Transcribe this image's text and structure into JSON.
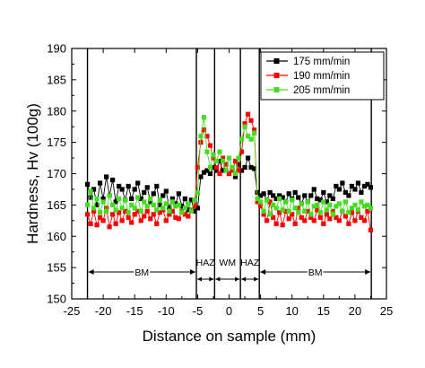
{
  "chart_data": {
    "type": "line",
    "title": "",
    "xlabel": "Distance on sample (mm)",
    "ylabel": "Hardness, Hv (100g)",
    "xlim": [
      -25,
      25
    ],
    "ylim": [
      150,
      190
    ],
    "x_ticks": [
      "-25",
      "-20",
      "-15",
      "-10",
      "-5",
      "0",
      "5",
      "10",
      "15",
      "20",
      "25"
    ],
    "x_tick_values": [
      -25,
      -20,
      -15,
      -10,
      -5,
      0,
      5,
      10,
      15,
      20,
      25
    ],
    "y_ticks": [
      "150",
      "155",
      "160",
      "165",
      "170",
      "175",
      "180",
      "185",
      "190"
    ],
    "y_tick_values": [
      150,
      155,
      160,
      165,
      170,
      175,
      180,
      185,
      190
    ],
    "grid": false,
    "legend_position": "top-right",
    "region_boundaries": [
      -22.5,
      -5.2,
      -2.3,
      1.8,
      4.8,
      22.6
    ],
    "region_annotation_y": 154.3,
    "regions": [
      {
        "label": "BM",
        "from": -22.5,
        "to": -5.2
      },
      {
        "label": "HAZ",
        "from": -5.2,
        "to": -2.3
      },
      {
        "label": "WM",
        "from": -2.3,
        "to": 1.8
      },
      {
        "label": "HAZ",
        "from": 1.8,
        "to": 4.8
      },
      {
        "label": "BM",
        "from": 4.8,
        "to": 22.6
      }
    ],
    "series": [
      {
        "name": "175 mm/min",
        "color": "#000000",
        "x": [
          -22.5,
          -22.0,
          -21.5,
          -21.0,
          -20.5,
          -20.0,
          -19.5,
          -19.0,
          -18.5,
          -18.0,
          -17.5,
          -17.0,
          -16.5,
          -16.0,
          -15.5,
          -15.0,
          -14.5,
          -14.0,
          -13.5,
          -13.0,
          -12.5,
          -12.0,
          -11.5,
          -11.0,
          -10.5,
          -10.0,
          -9.5,
          -9.0,
          -8.5,
          -8.0,
          -7.5,
          -7.0,
          -6.5,
          -6.0,
          -5.5,
          -5.0,
          -4.5,
          -4.0,
          -3.5,
          -3.0,
          -2.5,
          -2.0,
          -1.5,
          -1.0,
          -0.5,
          0.0,
          0.5,
          1.0,
          1.5,
          2.0,
          2.5,
          3.0,
          3.5,
          4.0,
          4.5,
          5.0,
          5.5,
          6.0,
          6.5,
          7.0,
          7.5,
          8.0,
          8.5,
          9.0,
          9.5,
          10.0,
          10.5,
          11.0,
          11.5,
          12.0,
          12.5,
          13.0,
          13.5,
          14.0,
          14.5,
          15.0,
          15.5,
          16.0,
          16.5,
          17.0,
          17.5,
          18.0,
          18.5,
          19.0,
          19.5,
          20.0,
          20.5,
          21.0,
          21.5,
          22.0,
          22.5
        ],
        "y": [
          168.3,
          166.2,
          167.5,
          165.0,
          168.5,
          166.0,
          169.5,
          166.5,
          169.0,
          165.5,
          168.0,
          167.5,
          165.8,
          168.0,
          166.0,
          167.5,
          168.5,
          166.0,
          167.0,
          167.8,
          165.5,
          166.8,
          168.0,
          165.0,
          166.5,
          167.2,
          164.5,
          166.0,
          165.2,
          166.8,
          164.8,
          166.0,
          164.2,
          165.8,
          164.0,
          164.5,
          169.5,
          170.2,
          170.5,
          170.0,
          171.0,
          170.5,
          172.0,
          170.5,
          171.5,
          170.0,
          171.0,
          169.5,
          171.5,
          170.5,
          171.0,
          172.5,
          171.0,
          170.8,
          167.0,
          166.5,
          166.8,
          165.8,
          167.0,
          166.5,
          166.0,
          166.5,
          166.2,
          165.5,
          166.8,
          166.0,
          167.0,
          166.2,
          165.2,
          166.5,
          165.5,
          166.5,
          167.5,
          166.0,
          165.8,
          167.0,
          165.5,
          166.5,
          166.0,
          168.0,
          167.5,
          168.5,
          167.0,
          166.5,
          168.0,
          167.5,
          168.5,
          167.0,
          168.0,
          168.3,
          167.8
        ]
      },
      {
        "name": "190 mm/min",
        "color": "#ff0000",
        "x": [
          -22.5,
          -22.0,
          -21.5,
          -21.0,
          -20.5,
          -20.0,
          -19.5,
          -19.0,
          -18.5,
          -18.0,
          -17.5,
          -17.0,
          -16.5,
          -16.0,
          -15.5,
          -15.0,
          -14.5,
          -14.0,
          -13.5,
          -13.0,
          -12.5,
          -12.0,
          -11.5,
          -11.0,
          -10.5,
          -10.0,
          -9.5,
          -9.0,
          -8.5,
          -8.0,
          -7.5,
          -7.0,
          -6.5,
          -6.0,
          -5.5,
          -5.0,
          -4.5,
          -4.0,
          -3.5,
          -3.0,
          -2.5,
          -2.0,
          -1.5,
          -1.0,
          -0.5,
          0.0,
          0.5,
          1.0,
          1.5,
          2.0,
          2.5,
          3.0,
          3.5,
          4.0,
          4.5,
          5.0,
          5.5,
          6.0,
          6.5,
          7.0,
          7.5,
          8.0,
          8.5,
          9.0,
          9.5,
          10.0,
          10.5,
          11.0,
          11.5,
          12.0,
          12.5,
          13.0,
          13.5,
          14.0,
          14.5,
          15.0,
          15.5,
          16.0,
          16.5,
          17.0,
          17.5,
          18.0,
          18.5,
          19.0,
          19.5,
          20.0,
          20.5,
          21.0,
          21.5,
          22.0,
          22.5
        ],
        "y": [
          163.5,
          162.0,
          164.0,
          161.8,
          163.0,
          162.5,
          164.5,
          161.5,
          163.5,
          162.0,
          163.8,
          162.5,
          164.0,
          163.0,
          162.2,
          163.5,
          164.0,
          162.5,
          163.2,
          164.0,
          162.8,
          163.5,
          162.0,
          163.8,
          164.2,
          162.5,
          163.5,
          164.0,
          163.0,
          162.8,
          164.0,
          163.5,
          163.2,
          164.2,
          164.8,
          171.0,
          175.0,
          177.0,
          176.0,
          174.5,
          172.5,
          171.0,
          170.0,
          172.5,
          171.5,
          170.0,
          170.5,
          172.0,
          170.5,
          173.5,
          178.0,
          179.5,
          178.5,
          177.0,
          165.5,
          164.8,
          163.5,
          162.5,
          165.5,
          163.0,
          162.0,
          163.8,
          161.8,
          164.0,
          162.8,
          163.5,
          162.0,
          164.5,
          163.0,
          162.5,
          164.0,
          163.0,
          162.5,
          164.2,
          163.0,
          162.0,
          163.5,
          162.8,
          164.0,
          163.0,
          162.5,
          164.0,
          163.2,
          162.0,
          163.8,
          162.5,
          164.0,
          163.0,
          162.5,
          164.0,
          161.0
        ]
      },
      {
        "name": "205 mm/min",
        "color": "#44dd22",
        "x": [
          -22.5,
          -22.0,
          -21.5,
          -21.0,
          -20.5,
          -20.0,
          -19.5,
          -19.0,
          -18.5,
          -18.0,
          -17.5,
          -17.0,
          -16.5,
          -16.0,
          -15.5,
          -15.0,
          -14.5,
          -14.0,
          -13.5,
          -13.0,
          -12.5,
          -12.0,
          -11.5,
          -11.0,
          -10.5,
          -10.0,
          -9.5,
          -9.0,
          -8.5,
          -8.0,
          -7.5,
          -7.0,
          -6.5,
          -6.0,
          -5.5,
          -5.0,
          -4.5,
          -4.0,
          -3.5,
          -3.0,
          -2.5,
          -2.0,
          -1.5,
          -1.0,
          -0.5,
          0.0,
          0.5,
          1.0,
          1.5,
          2.0,
          2.5,
          3.0,
          3.5,
          4.0,
          4.5,
          5.0,
          5.5,
          6.0,
          6.5,
          7.0,
          7.5,
          8.0,
          8.5,
          9.0,
          9.5,
          10.0,
          10.5,
          11.0,
          11.5,
          12.0,
          12.5,
          13.0,
          13.5,
          14.0,
          14.5,
          15.0,
          15.5,
          16.0,
          16.5,
          17.0,
          17.5,
          18.0,
          18.5,
          19.0,
          19.5,
          20.0,
          20.5,
          21.0,
          21.5,
          22.0,
          22.5
        ],
        "y": [
          165.0,
          167.2,
          164.5,
          166.0,
          163.8,
          165.5,
          164.0,
          166.5,
          165.0,
          164.2,
          166.0,
          164.5,
          165.8,
          163.8,
          165.0,
          164.5,
          166.2,
          164.0,
          165.5,
          164.8,
          166.0,
          165.0,
          164.2,
          165.8,
          164.5,
          165.2,
          164.0,
          165.5,
          164.8,
          165.0,
          163.8,
          164.5,
          165.2,
          164.0,
          165.8,
          167.0,
          176.0,
          179.0,
          173.5,
          171.0,
          173.0,
          172.0,
          173.5,
          172.0,
          170.5,
          172.5,
          171.0,
          170.0,
          172.5,
          175.5,
          177.5,
          176.0,
          175.5,
          176.5,
          166.0,
          165.5,
          164.0,
          165.8,
          163.5,
          165.0,
          164.5,
          166.0,
          164.2,
          165.5,
          164.0,
          165.8,
          164.5,
          163.8,
          165.2,
          164.0,
          165.5,
          163.5,
          164.8,
          165.0,
          163.8,
          165.5,
          164.2,
          165.0,
          163.5,
          164.8,
          165.2,
          164.0,
          165.5,
          163.8,
          164.5,
          165.0,
          164.2,
          165.5,
          164.8,
          165.0,
          164.5
        ]
      }
    ]
  }
}
